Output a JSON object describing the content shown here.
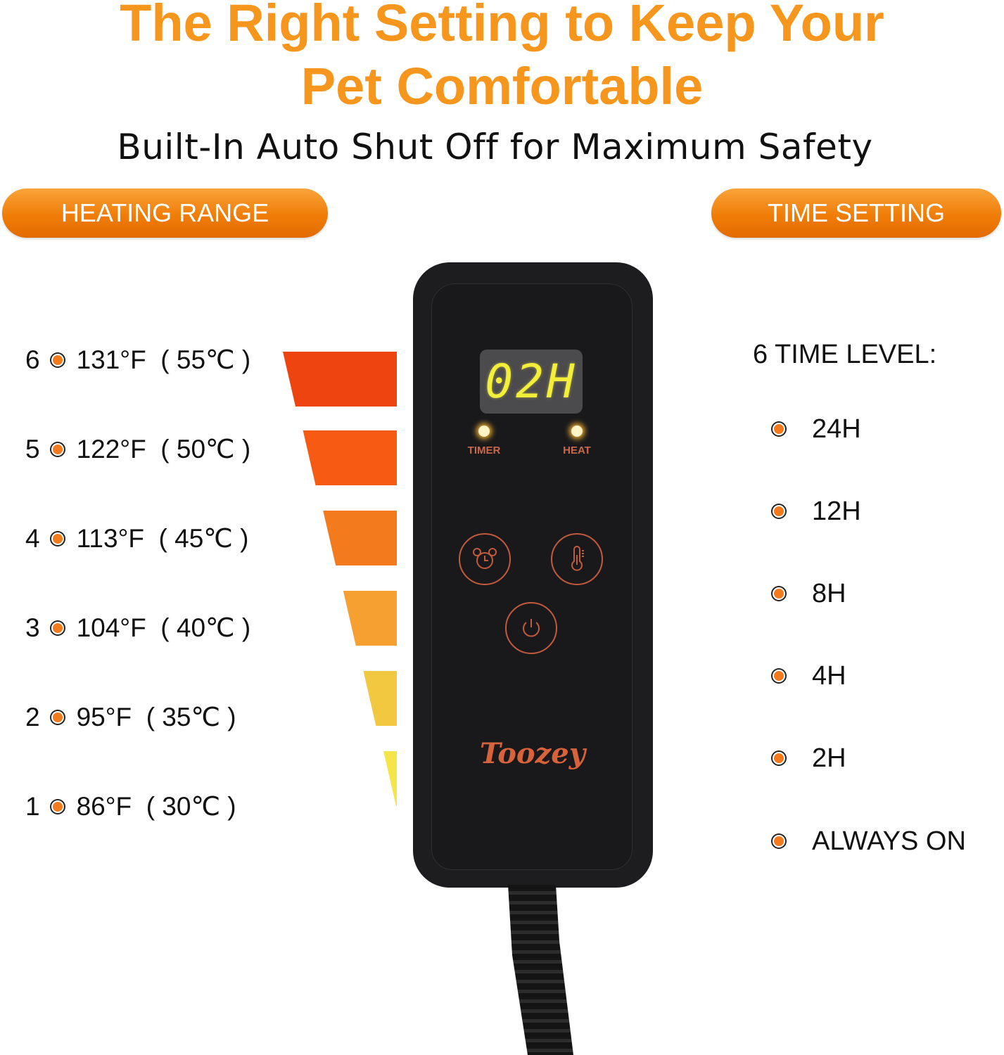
{
  "header": {
    "title_line1": "The Right Setting to Keep Your",
    "title_line2": "Pet Comfortable",
    "subtitle": "Built-In Auto Shut Off for Maximum Safety"
  },
  "pills": {
    "heating": "HEATING RANGE",
    "time": "TIME SETTING"
  },
  "heating_levels": [
    {
      "level": "6",
      "temp": "131°F  ( 55℃ )",
      "color": "#EE4410"
    },
    {
      "level": "5",
      "temp": "122°F  ( 50℃ )",
      "color": "#F75A12"
    },
    {
      "level": "4",
      "temp": "113°F  ( 45℃ )",
      "color": "#F47A1E"
    },
    {
      "level": "3",
      "temp": "104°F  ( 40℃ )",
      "color": "#F5A030"
    },
    {
      "level": "2",
      "temp": "95°F  ( 35℃ )",
      "color": "#F2C840"
    },
    {
      "level": "1",
      "temp": "86°F  ( 30℃ )",
      "color": "#F5E44A"
    }
  ],
  "time": {
    "heading": "6 TIME LEVEL:",
    "items": [
      "24H",
      "12H",
      "8H",
      "4H",
      "2H",
      "ALWAYS ON"
    ]
  },
  "device": {
    "display": "02H",
    "timer_label": "TIMER",
    "heat_label": "HEAT",
    "logo": "Toozey",
    "icons": [
      "alarm-clock-icon",
      "thermometer-icon",
      "power-icon"
    ]
  },
  "colors": {
    "accent": "#F7961C",
    "device_body": "#1d1d1f",
    "button_ring": "#C25A3C"
  }
}
